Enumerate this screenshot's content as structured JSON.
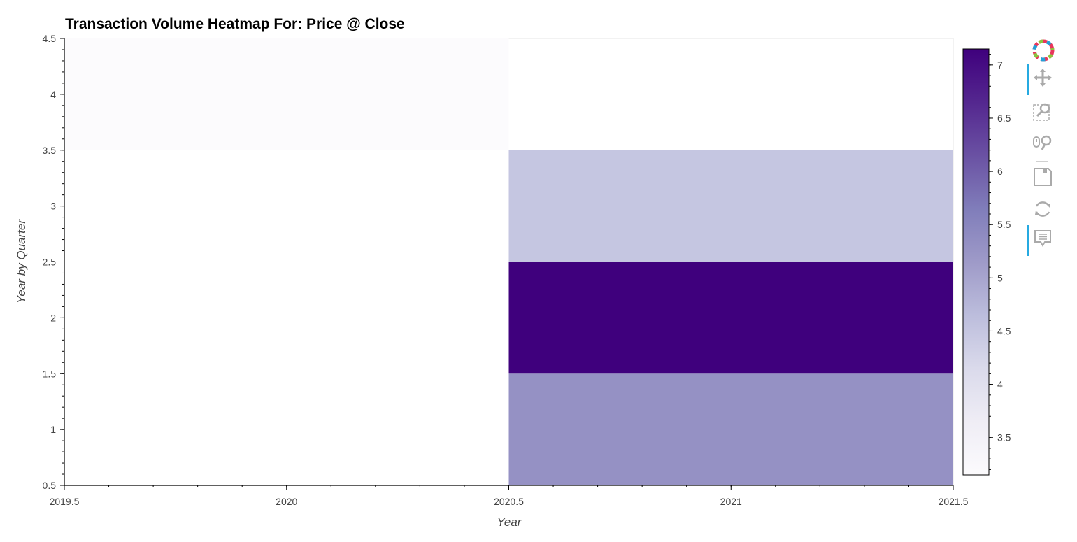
{
  "chart_data": {
    "type": "heatmap",
    "title": "Transaction Volume Heatmap For: Price @ Close",
    "xlabel": "Year",
    "ylabel": "Year by Quarter",
    "xlim": [
      2019.5,
      2021.5
    ],
    "ylim": [
      0.5,
      4.5
    ],
    "x_ticks": [
      "2019.5",
      "2020",
      "2020.5",
      "2021",
      "2021.5"
    ],
    "y_ticks": [
      "0.5",
      "1",
      "1.5",
      "2",
      "2.5",
      "3",
      "3.5",
      "4",
      "4.5"
    ],
    "cells": [
      {
        "x": 2020,
        "y": 4,
        "value": 3.15
      },
      {
        "x": 2021,
        "y": 1,
        "value": 5.3
      },
      {
        "x": 2021,
        "y": 2,
        "value": 7.15
      },
      {
        "x": 2021,
        "y": 3,
        "value": 4.5
      }
    ],
    "colorbar": {
      "min": 3.15,
      "max": 7.15,
      "ticks": [
        "3.5",
        "4",
        "4.5",
        "5",
        "5.5",
        "6",
        "6.5",
        "7"
      ],
      "palette": [
        "#fcfbfd",
        "#efedf5",
        "#dadaeb",
        "#bcbddc",
        "#9e9ac8",
        "#807dba",
        "#6a51a3",
        "#54278f",
        "#3f007d"
      ]
    }
  },
  "toolbar": {
    "tools": [
      {
        "name": "pan-tool",
        "icon": "move-arrows-icon",
        "active": true
      },
      {
        "name": "box-zoom-tool",
        "icon": "box-zoom-icon",
        "active": false
      },
      {
        "name": "wheel-zoom-tool",
        "icon": "wheel-zoom-icon",
        "active": false
      },
      {
        "name": "save-tool",
        "icon": "save-icon",
        "active": false
      },
      {
        "name": "reset-tool",
        "icon": "reset-icon",
        "active": false
      },
      {
        "name": "hover-tool",
        "icon": "hover-tooltip-icon",
        "active": true
      }
    ]
  }
}
